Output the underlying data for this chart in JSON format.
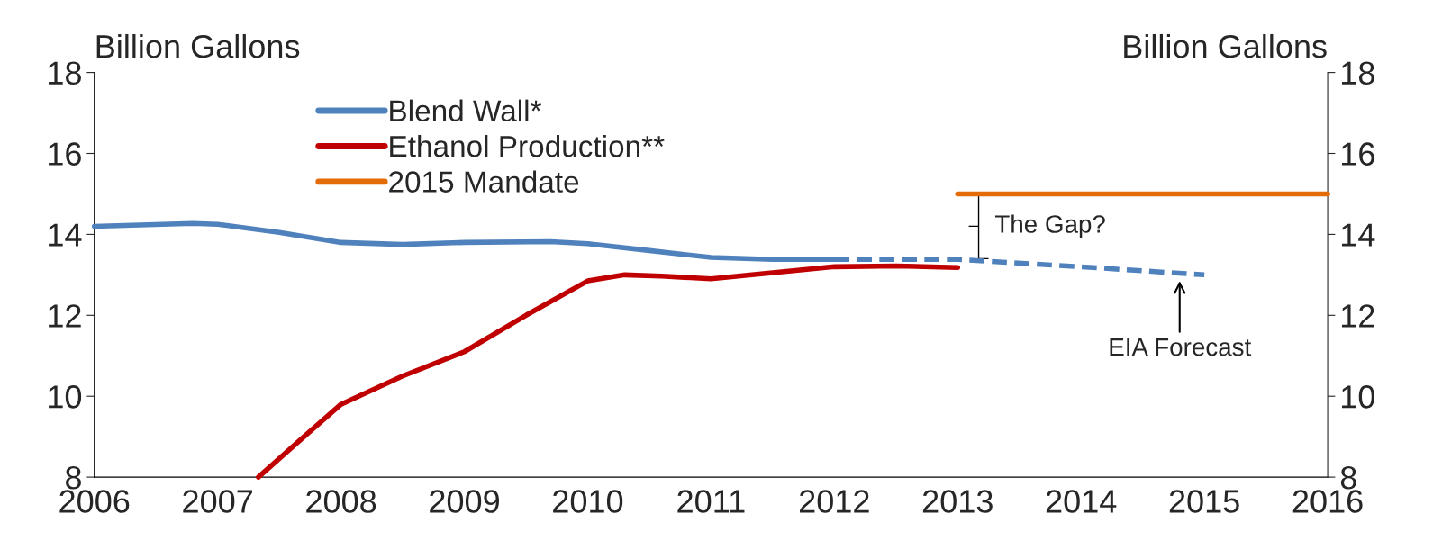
{
  "chart_data": {
    "type": "line",
    "ylabel": "Billion Gallons",
    "y2label": "Billion Gallons",
    "xlim": [
      2006,
      2016
    ],
    "xticks": [
      2006,
      2007,
      2008,
      2009,
      2010,
      2011,
      2012,
      2013,
      2014,
      2015,
      2016
    ],
    "ylim": [
      8,
      18
    ],
    "yticks": [
      8,
      10,
      12,
      14,
      16,
      18
    ],
    "y2lim": [
      8,
      18
    ],
    "y2ticks": [
      8,
      10,
      12,
      14,
      16,
      18
    ],
    "grid": false,
    "legend": "top left",
    "marker": "none",
    "series": [
      {
        "name": "Blend Wall*",
        "color": "#4f81bd",
        "line_style": "solid",
        "x": [
          2006,
          2006.8,
          2007,
          2007.5,
          2008,
          2008.5,
          2009,
          2009.7,
          2010,
          2010.5,
          2011,
          2011.5,
          2012
        ],
        "values": [
          14.2,
          14.27,
          14.25,
          14.05,
          13.8,
          13.75,
          13.8,
          13.82,
          13.77,
          13.6,
          13.43,
          13.38,
          13.38
        ]
      },
      {
        "color": "#4f81bd",
        "line_style": "dashed",
        "x": [
          2012,
          2013,
          2014,
          2015
        ],
        "values": [
          13.38,
          13.38,
          13.2,
          13.0
        ]
      },
      {
        "name": "Ethanol Production**",
        "color": "#c00000",
        "line_style": "solid",
        "x": [
          2007.33,
          2007.7,
          2008,
          2008.5,
          2009,
          2009.5,
          2010,
          2010.3,
          2010.6,
          2011,
          2011.5,
          2012,
          2012.5,
          2013
        ],
        "values": [
          8.0,
          9.0,
          9.8,
          10.5,
          11.1,
          12.0,
          12.85,
          13.0,
          12.97,
          12.9,
          13.05,
          13.2,
          13.22,
          13.18
        ]
      },
      {
        "name": "2015 Mandate",
        "color": "#e36c09",
        "line_style": "solid",
        "x": [
          2013,
          2016
        ],
        "values": [
          15,
          15
        ],
        "axis": "y2"
      }
    ],
    "annotations": [
      "The Gap?",
      {
        "text": "EIA Forecast",
        "x": 2014.8,
        "y": 13.05
      }
    ]
  }
}
